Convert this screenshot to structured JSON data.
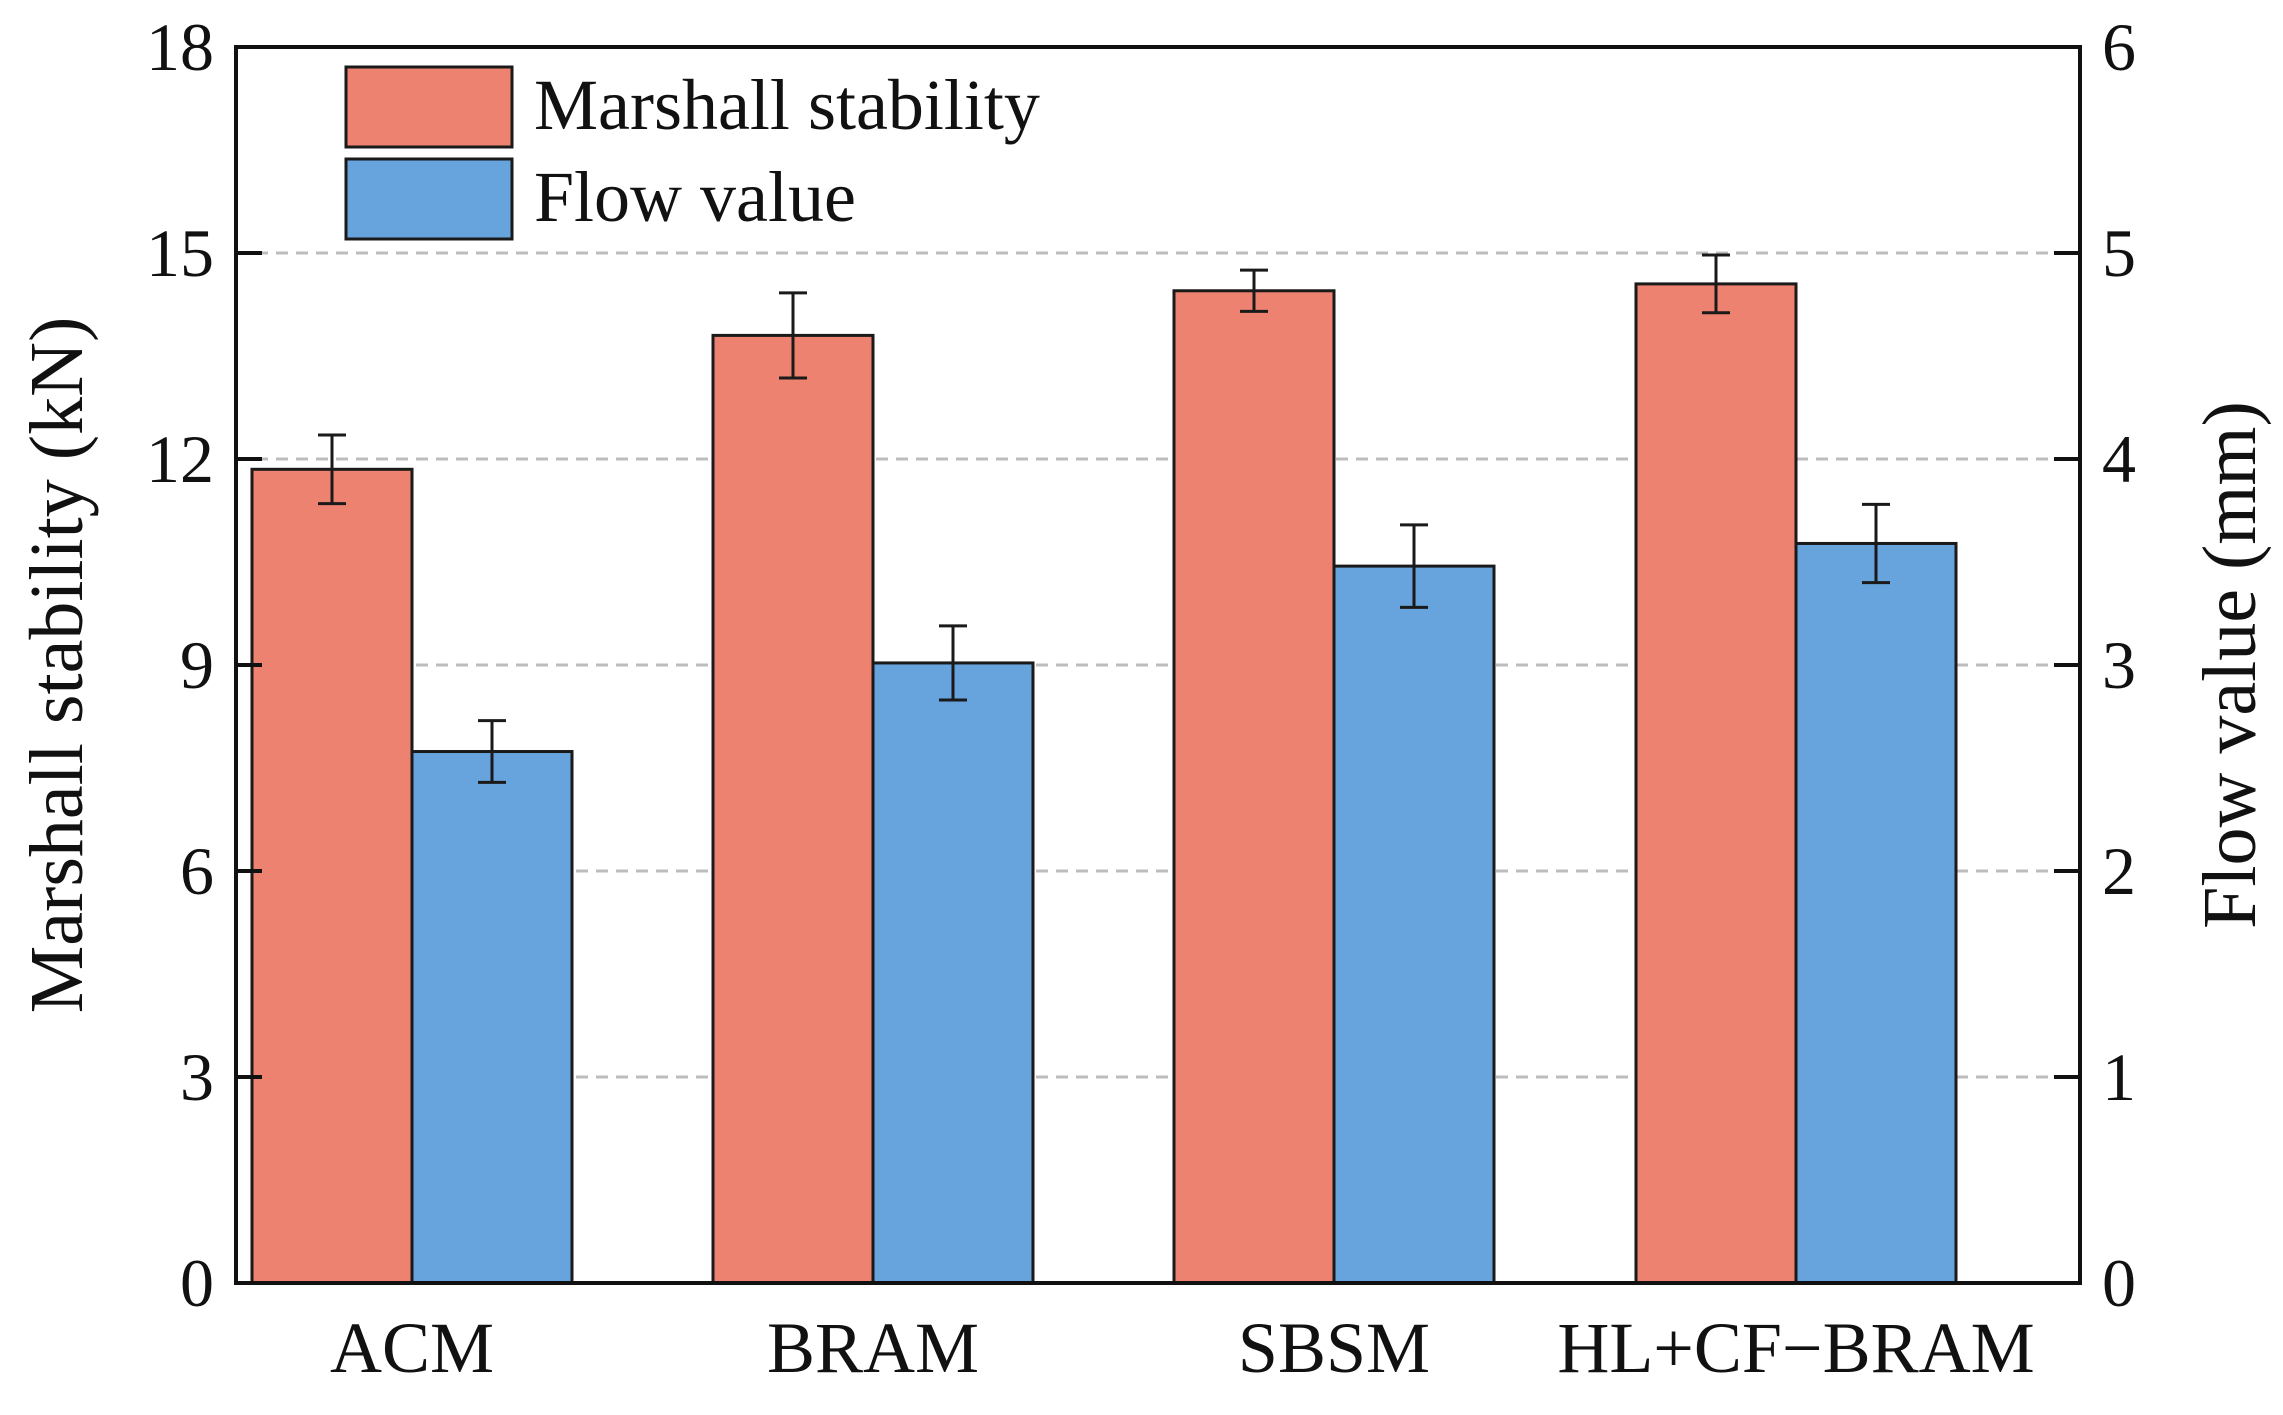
{
  "chart_data": {
    "type": "bar",
    "categories": [
      "ACM",
      "BRAM",
      "SBSM",
      "HL+CF−BRAM"
    ],
    "series": [
      {
        "name": "Marshall stability",
        "axis": "left",
        "color": "#EE8270",
        "values": [
          11.85,
          13.8,
          14.45,
          14.55
        ],
        "errors": [
          0.5,
          0.62,
          0.3,
          0.42
        ]
      },
      {
        "name": "Flow value",
        "axis": "right",
        "color": "#67A3DC",
        "values": [
          2.58,
          3.01,
          3.48,
          3.59
        ],
        "errors": [
          0.15,
          0.18,
          0.2,
          0.19
        ]
      }
    ],
    "ylabel": "Marshall stability (kN)",
    "y2label": "Flow value (mm)",
    "ylim": [
      0,
      18
    ],
    "y2lim": [
      0,
      6
    ],
    "yticks": [
      "0",
      "3",
      "6",
      "9",
      "12",
      "15",
      "18"
    ],
    "y2ticks": [
      "0",
      "1",
      "2",
      "3",
      "4",
      "5",
      "6"
    ],
    "grid": "horizontal dashed",
    "legend": "top-left"
  }
}
